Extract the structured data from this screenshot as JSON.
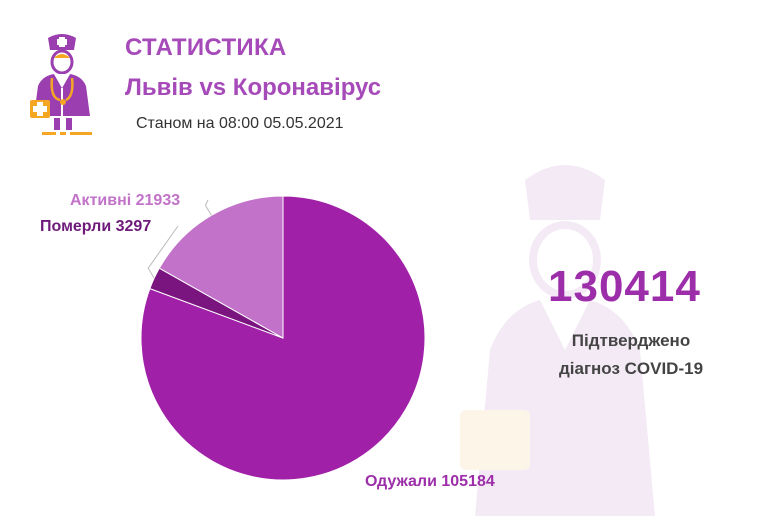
{
  "header": {
    "title": "СТАТИСТИКА",
    "subtitle": "Львів vs Коронавірус",
    "as_of": "Станом на 08:00 05.05.2021"
  },
  "summary": {
    "total": "130414",
    "caption_line1": "Підтверджено",
    "caption_line2": "діагноз COVID-19"
  },
  "chart_data": {
    "type": "pie",
    "title": "",
    "slices": [
      {
        "name": "Одужали",
        "value": 105184,
        "label": "Одужали 105184",
        "color": "#a020a8"
      },
      {
        "name": "Помeрли",
        "value": 3297,
        "label": "Померли 3297",
        "color": "#7a1580"
      },
      {
        "name": "Активні",
        "value": 21933,
        "label": "Активні 21933",
        "color": "#c272c9"
      }
    ],
    "legend": "none"
  },
  "colors": {
    "accent": "#a64ab9",
    "logo_purple": "#9b3fb0",
    "logo_orange": "#f5a623"
  },
  "icons": {
    "logo": "doctor-icon",
    "watermark": "doctor-icon"
  }
}
